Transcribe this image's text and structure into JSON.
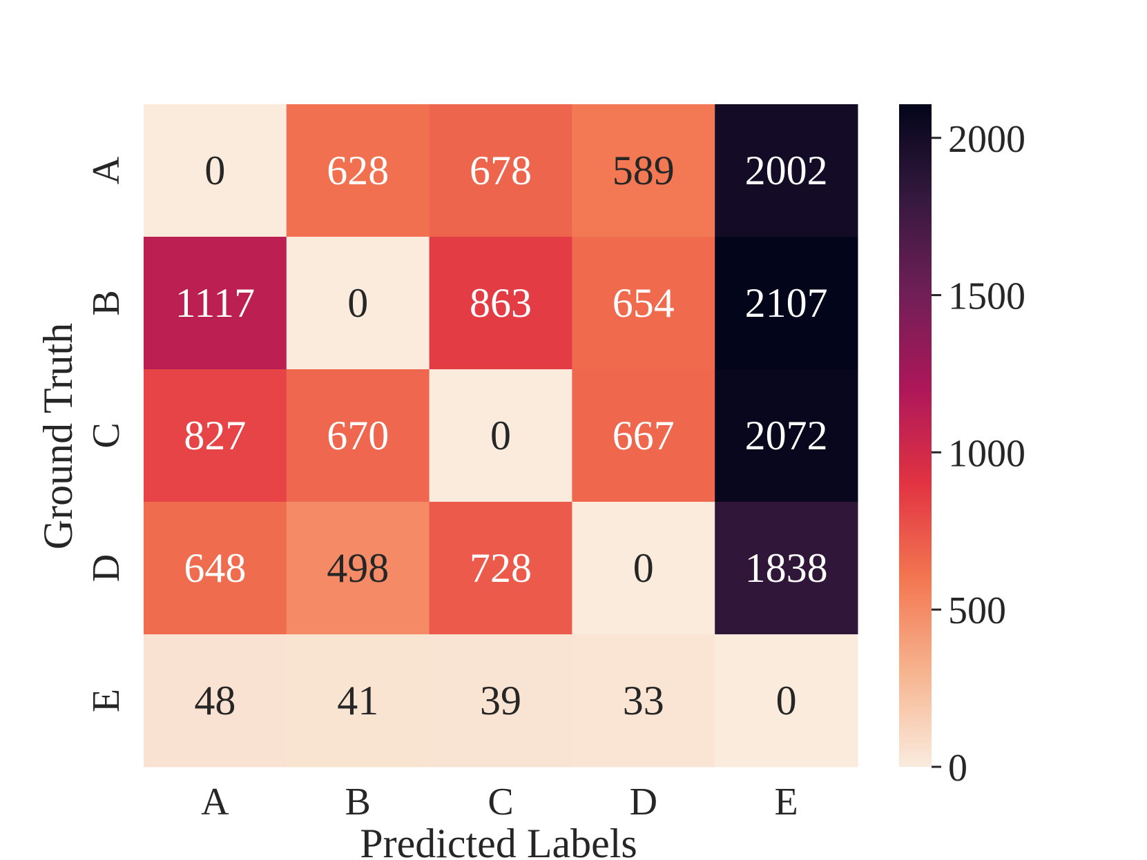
{
  "chart_data": {
    "type": "heatmap",
    "title": "",
    "xlabel": "Predicted Labels",
    "ylabel": "Ground Truth",
    "x_categories": [
      "A",
      "B",
      "C",
      "D",
      "E"
    ],
    "y_categories": [
      "A",
      "B",
      "C",
      "D",
      "E"
    ],
    "values": [
      [
        0,
        628,
        678,
        589,
        2002
      ],
      [
        1117,
        0,
        863,
        654,
        2107
      ],
      [
        827,
        670,
        0,
        667,
        2072
      ],
      [
        648,
        498,
        728,
        0,
        1838
      ],
      [
        48,
        41,
        39,
        33,
        0
      ]
    ],
    "colorbar": {
      "range": [
        0,
        2107
      ],
      "ticks": [
        0,
        500,
        1000,
        1500,
        2000
      ],
      "colormap": "rocket_r",
      "colors": [
        "#faebdd",
        "#f6b48f",
        "#f37651",
        "#e13342",
        "#ad1759",
        "#701f57",
        "#35193e",
        "#03051a"
      ]
    },
    "grid": false,
    "legend": "colorbar-right"
  }
}
